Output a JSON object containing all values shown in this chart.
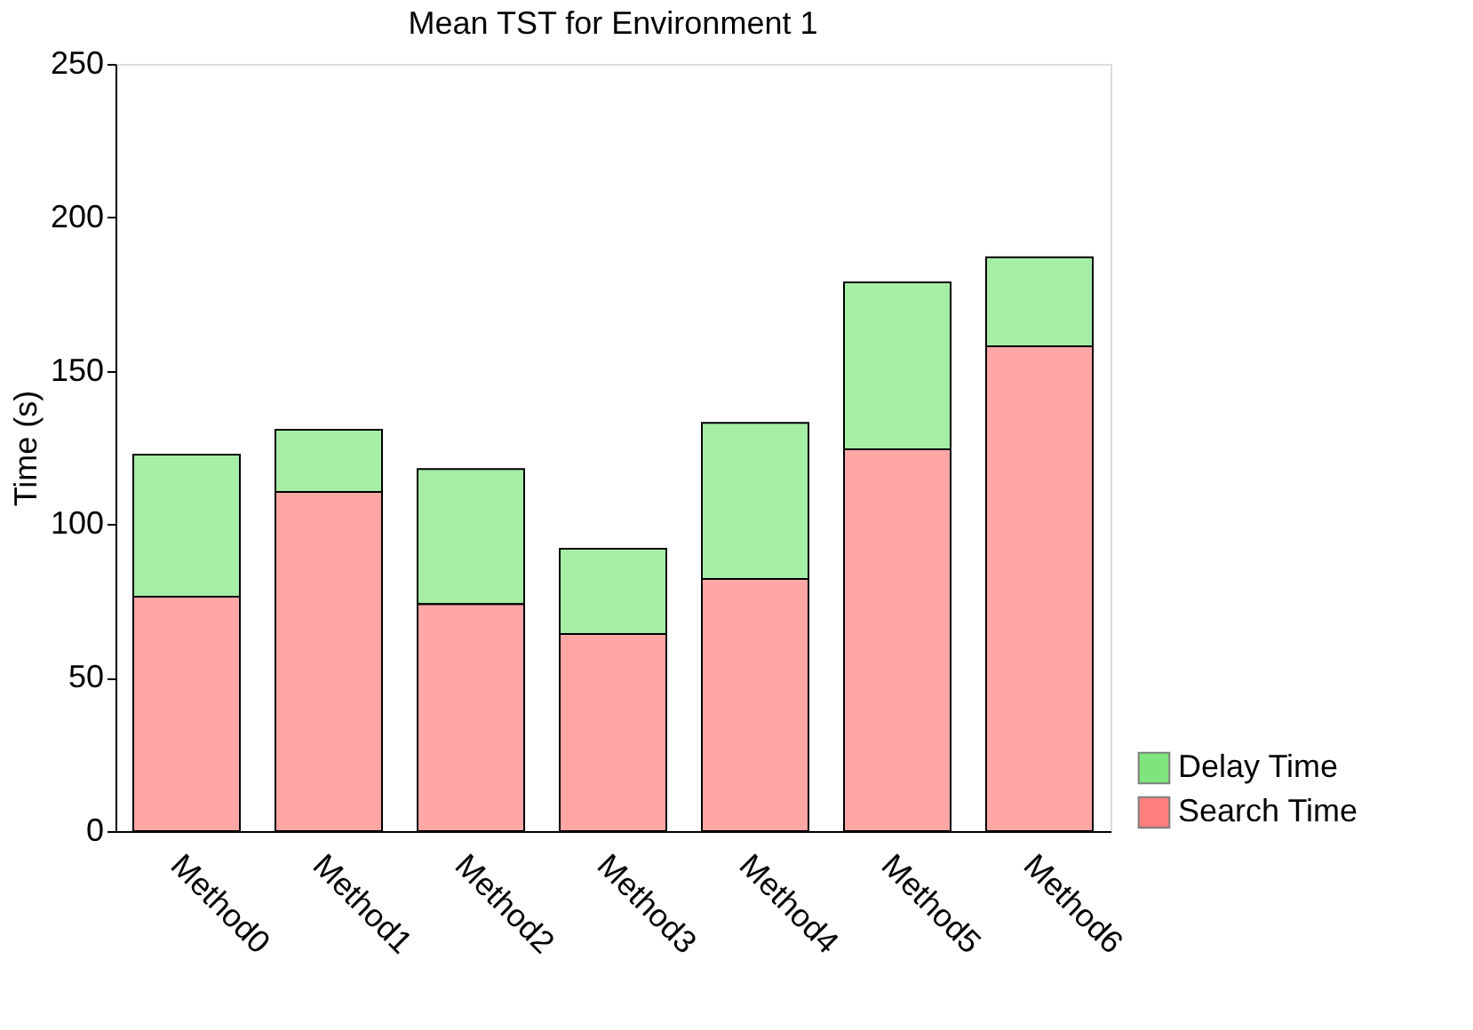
{
  "chart_data": {
    "type": "bar",
    "title": "Mean TST for Environment 1",
    "ylabel": "Time (s)",
    "categories": [
      "Method0",
      "Method1",
      "Method2",
      "Method3",
      "Method4",
      "Method5",
      "Method6"
    ],
    "stacked": true,
    "series": [
      {
        "name": "Search Time",
        "color": "#ff0000",
        "values": [
          76.4,
          110.5,
          74,
          64.2,
          82.2,
          124.4,
          158
        ]
      },
      {
        "name": "Delay Time",
        "color": "#00cc00",
        "values": [
          46.3,
          20.3,
          44,
          27.8,
          50.8,
          54.4,
          29
        ]
      }
    ],
    "ylim": [
      0,
      250
    ],
    "yticks": [
      0,
      50,
      100,
      150,
      200,
      250
    ],
    "grid": false,
    "legend": "bottom right"
  }
}
